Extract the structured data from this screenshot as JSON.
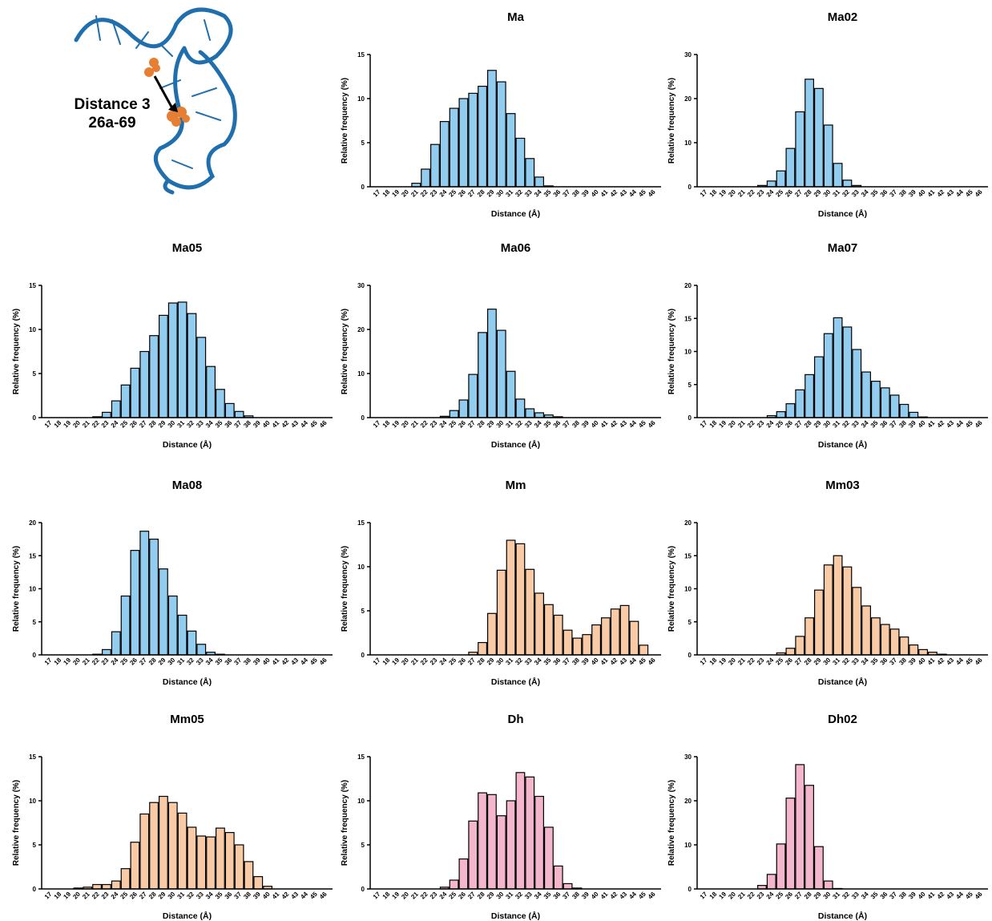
{
  "figure_label": [
    "Distance 3",
    "26a-69"
  ],
  "chart_data": [
    {
      "type": "bar",
      "title": "Ma",
      "x_label": "Distance (Å)",
      "y_label": "Relative frequency (%)",
      "categories": [
        "17",
        "18",
        "19",
        "20",
        "21",
        "22",
        "23",
        "24",
        "25",
        "26",
        "27",
        "28",
        "29",
        "30",
        "31",
        "32",
        "33",
        "34",
        "35",
        "36",
        "37",
        "38",
        "39",
        "40",
        "41",
        "42",
        "43",
        "44",
        "45",
        "46"
      ],
      "values": [
        0,
        0,
        0,
        0,
        0.4,
        2,
        4.8,
        7.4,
        8.9,
        10,
        10.6,
        11.4,
        13.2,
        11.9,
        8.3,
        5.5,
        3.2,
        1.1,
        0.1,
        0,
        0,
        0,
        0,
        0,
        0,
        0,
        0,
        0,
        0,
        0
      ],
      "color": "#92cdef",
      "ylim": [
        0,
        15
      ],
      "yticks": [
        0,
        5,
        10,
        15
      ]
    },
    {
      "type": "bar",
      "title": "Ma02",
      "x_label": "Distance (Å)",
      "y_label": "Relative frequency (%)",
      "categories": [
        "17",
        "18",
        "19",
        "20",
        "21",
        "22",
        "23",
        "24",
        "25",
        "26",
        "27",
        "28",
        "29",
        "30",
        "31",
        "32",
        "33",
        "34",
        "35",
        "36",
        "37",
        "38",
        "39",
        "40",
        "41",
        "42",
        "43",
        "44",
        "45",
        "46"
      ],
      "values": [
        0,
        0,
        0,
        0,
        0,
        0,
        0.3,
        1.3,
        3.6,
        8.7,
        17,
        24.4,
        22.3,
        14,
        5.3,
        1.5,
        0.3,
        0,
        0,
        0,
        0,
        0,
        0,
        0,
        0,
        0,
        0,
        0,
        0,
        0
      ],
      "color": "#92cdef",
      "ylim": [
        0,
        30
      ],
      "yticks": [
        0,
        10,
        20,
        30
      ]
    },
    {
      "type": "bar",
      "title": "Ma05",
      "x_label": "Distance (Å)",
      "y_label": "Relative frequency (%)",
      "categories": [
        "17",
        "18",
        "19",
        "20",
        "21",
        "22",
        "23",
        "24",
        "25",
        "26",
        "27",
        "28",
        "29",
        "30",
        "31",
        "32",
        "33",
        "34",
        "35",
        "36",
        "37",
        "38",
        "39",
        "40",
        "41",
        "42",
        "43",
        "44",
        "45",
        "46"
      ],
      "values": [
        0,
        0,
        0,
        0,
        0,
        0.1,
        0.6,
        1.9,
        3.7,
        5.6,
        7.5,
        9.3,
        11.6,
        13,
        13.1,
        11.8,
        9.1,
        5.8,
        3.2,
        1.6,
        0.7,
        0.2,
        0,
        0,
        0,
        0,
        0,
        0,
        0,
        0
      ],
      "color": "#92cdef",
      "ylim": [
        0,
        15
      ],
      "yticks": [
        0,
        5,
        10,
        15
      ]
    },
    {
      "type": "bar",
      "title": "Ma06",
      "x_label": "Distance (Å)",
      "y_label": "Relative frequency (%)",
      "categories": [
        "17",
        "18",
        "19",
        "20",
        "21",
        "22",
        "23",
        "24",
        "25",
        "26",
        "27",
        "28",
        "29",
        "30",
        "31",
        "32",
        "33",
        "34",
        "35",
        "36",
        "37",
        "38",
        "39",
        "40",
        "41",
        "42",
        "43",
        "44",
        "45",
        "46"
      ],
      "values": [
        0,
        0,
        0,
        0,
        0,
        0,
        0,
        0.3,
        1.6,
        4,
        9.8,
        19.3,
        24.6,
        19.8,
        10.5,
        4.2,
        2,
        1.1,
        0.6,
        0.2,
        0,
        0,
        0,
        0,
        0,
        0,
        0,
        0,
        0,
        0
      ],
      "color": "#92cdef",
      "ylim": [
        0,
        30
      ],
      "yticks": [
        0,
        10,
        20,
        30
      ]
    },
    {
      "type": "bar",
      "title": "Ma07",
      "x_label": "Distance (Å)",
      "y_label": "Relative frequency (%)",
      "categories": [
        "17",
        "18",
        "19",
        "20",
        "21",
        "22",
        "23",
        "24",
        "25",
        "26",
        "27",
        "28",
        "29",
        "30",
        "31",
        "32",
        "33",
        "34",
        "35",
        "36",
        "37",
        "38",
        "39",
        "40",
        "41",
        "42",
        "43",
        "44",
        "45",
        "46"
      ],
      "values": [
        0,
        0,
        0,
        0,
        0,
        0,
        0,
        0.3,
        0.9,
        2.1,
        4.2,
        6.5,
        9.2,
        12.7,
        15.1,
        13.7,
        10.3,
        6.9,
        5.5,
        4.5,
        3.4,
        2,
        0.8,
        0.1,
        0,
        0,
        0,
        0,
        0,
        0
      ],
      "color": "#92cdef",
      "ylim": [
        0,
        20
      ],
      "yticks": [
        0,
        5,
        10,
        15,
        20
      ]
    },
    {
      "type": "bar",
      "title": "Ma08",
      "x_label": "Distance (Å)",
      "y_label": "Relative frequency (%)",
      "categories": [
        "17",
        "18",
        "19",
        "20",
        "21",
        "22",
        "23",
        "24",
        "25",
        "26",
        "27",
        "28",
        "29",
        "30",
        "31",
        "32",
        "33",
        "34",
        "35",
        "36",
        "37",
        "38",
        "39",
        "40",
        "41",
        "42",
        "43",
        "44",
        "45",
        "46"
      ],
      "values": [
        0,
        0,
        0,
        0,
        0,
        0.1,
        0.8,
        3.5,
        8.9,
        15.8,
        18.7,
        17.5,
        13,
        8.9,
        6,
        3.6,
        1.6,
        0.4,
        0.1,
        0,
        0,
        0,
        0,
        0,
        0,
        0,
        0,
        0,
        0,
        0
      ],
      "color": "#92cdef",
      "ylim": [
        0,
        20
      ],
      "yticks": [
        0,
        5,
        10,
        15,
        20
      ]
    },
    {
      "type": "bar",
      "title": "Mm",
      "x_label": "Distance (Å)",
      "y_label": "Relative frequency (%)",
      "categories": [
        "17",
        "18",
        "19",
        "20",
        "21",
        "22",
        "23",
        "24",
        "25",
        "26",
        "27",
        "28",
        "29",
        "30",
        "31",
        "32",
        "33",
        "34",
        "35",
        "36",
        "37",
        "38",
        "39",
        "40",
        "41",
        "42",
        "43",
        "44",
        "45",
        "46"
      ],
      "values": [
        0,
        0,
        0,
        0,
        0,
        0,
        0,
        0,
        0,
        0,
        0.3,
        1.4,
        4.7,
        9.6,
        13,
        12.6,
        9.7,
        7,
        5.7,
        4.5,
        2.8,
        1.9,
        2.3,
        3.4,
        4.2,
        5.2,
        5.6,
        3.8,
        1.1,
        0
      ],
      "color": "#f8caa6",
      "ylim": [
        0,
        15
      ],
      "yticks": [
        0,
        5,
        10,
        15
      ]
    },
    {
      "type": "bar",
      "title": "Mm03",
      "x_label": "Distance (Å)",
      "y_label": "Relative frequency (%)",
      "categories": [
        "17",
        "18",
        "19",
        "20",
        "21",
        "22",
        "23",
        "24",
        "25",
        "26",
        "27",
        "28",
        "29",
        "30",
        "31",
        "32",
        "33",
        "34",
        "35",
        "36",
        "37",
        "38",
        "39",
        "40",
        "41",
        "42",
        "43",
        "44",
        "45",
        "46"
      ],
      "values": [
        0,
        0,
        0,
        0,
        0,
        0,
        0,
        0,
        0.3,
        1,
        2.8,
        5.6,
        9.8,
        13.6,
        15,
        13.3,
        10.2,
        7.4,
        5.6,
        4.6,
        3.9,
        2.7,
        1.5,
        0.8,
        0.4,
        0.1,
        0,
        0,
        0,
        0
      ],
      "color": "#f8caa6",
      "ylim": [
        0,
        20
      ],
      "yticks": [
        0,
        5,
        10,
        15,
        20
      ]
    },
    {
      "type": "bar",
      "title": "Mm05",
      "x_label": "Distance  (Å)",
      "y_label": "Relative frequency (%)",
      "categories": [
        "17",
        "18",
        "19",
        "20",
        "21",
        "22",
        "23",
        "24",
        "25",
        "26",
        "27",
        "28",
        "29",
        "30",
        "31",
        "32",
        "33",
        "34",
        "35",
        "36",
        "37",
        "38",
        "39",
        "40",
        "41",
        "42",
        "43",
        "44",
        "45",
        "46"
      ],
      "values": [
        0,
        0,
        0,
        0.1,
        0.2,
        0.5,
        0.5,
        0.9,
        2.3,
        5.3,
        8.5,
        9.8,
        10.5,
        9.8,
        8.6,
        7,
        6,
        5.9,
        6.9,
        6.4,
        5,
        3.1,
        1.4,
        0.3,
        0,
        0,
        0,
        0,
        0,
        0
      ],
      "color": "#f8caa6",
      "ylim": [
        0,
        15
      ],
      "yticks": [
        0,
        5,
        10,
        15
      ]
    },
    {
      "type": "bar",
      "title": "Dh",
      "x_label": "Distance (Å)",
      "y_label": "Relative frequency (%)",
      "categories": [
        "17",
        "18",
        "19",
        "20",
        "21",
        "22",
        "23",
        "24",
        "25",
        "26",
        "27",
        "28",
        "29",
        "30",
        "31",
        "32",
        "33",
        "34",
        "35",
        "36",
        "37",
        "38",
        "39",
        "40",
        "41",
        "42",
        "43",
        "44",
        "45",
        "46"
      ],
      "values": [
        0,
        0,
        0,
        0,
        0,
        0,
        0,
        0.2,
        1,
        3.4,
        7.7,
        10.9,
        10.7,
        8.3,
        10,
        13.2,
        12.7,
        10.5,
        7,
        2.6,
        0.6,
        0.1,
        0,
        0,
        0,
        0,
        0,
        0,
        0,
        0
      ],
      "color": "#f4b6cc",
      "ylim": [
        0,
        15
      ],
      "yticks": [
        0,
        5,
        10,
        15
      ]
    },
    {
      "type": "bar",
      "title": "Dh02",
      "x_label": "Distance (Å)",
      "y_label": "Relative frequency (%)",
      "categories": [
        "17",
        "18",
        "19",
        "20",
        "21",
        "22",
        "23",
        "24",
        "25",
        "26",
        "27",
        "28",
        "29",
        "30",
        "31",
        "32",
        "33",
        "34",
        "35",
        "36",
        "37",
        "38",
        "39",
        "40",
        "41",
        "42",
        "43",
        "44",
        "45",
        "46"
      ],
      "values": [
        0,
        0,
        0,
        0,
        0,
        0,
        0.8,
        3.3,
        10.2,
        20.6,
        28.2,
        23.5,
        9.6,
        1.8,
        0.1,
        0,
        0,
        0,
        0,
        0,
        0,
        0,
        0,
        0,
        0,
        0,
        0,
        0,
        0,
        0
      ],
      "color": "#f4b6cc",
      "ylim": [
        0,
        30
      ],
      "yticks": [
        0,
        10,
        20,
        30
      ]
    }
  ]
}
